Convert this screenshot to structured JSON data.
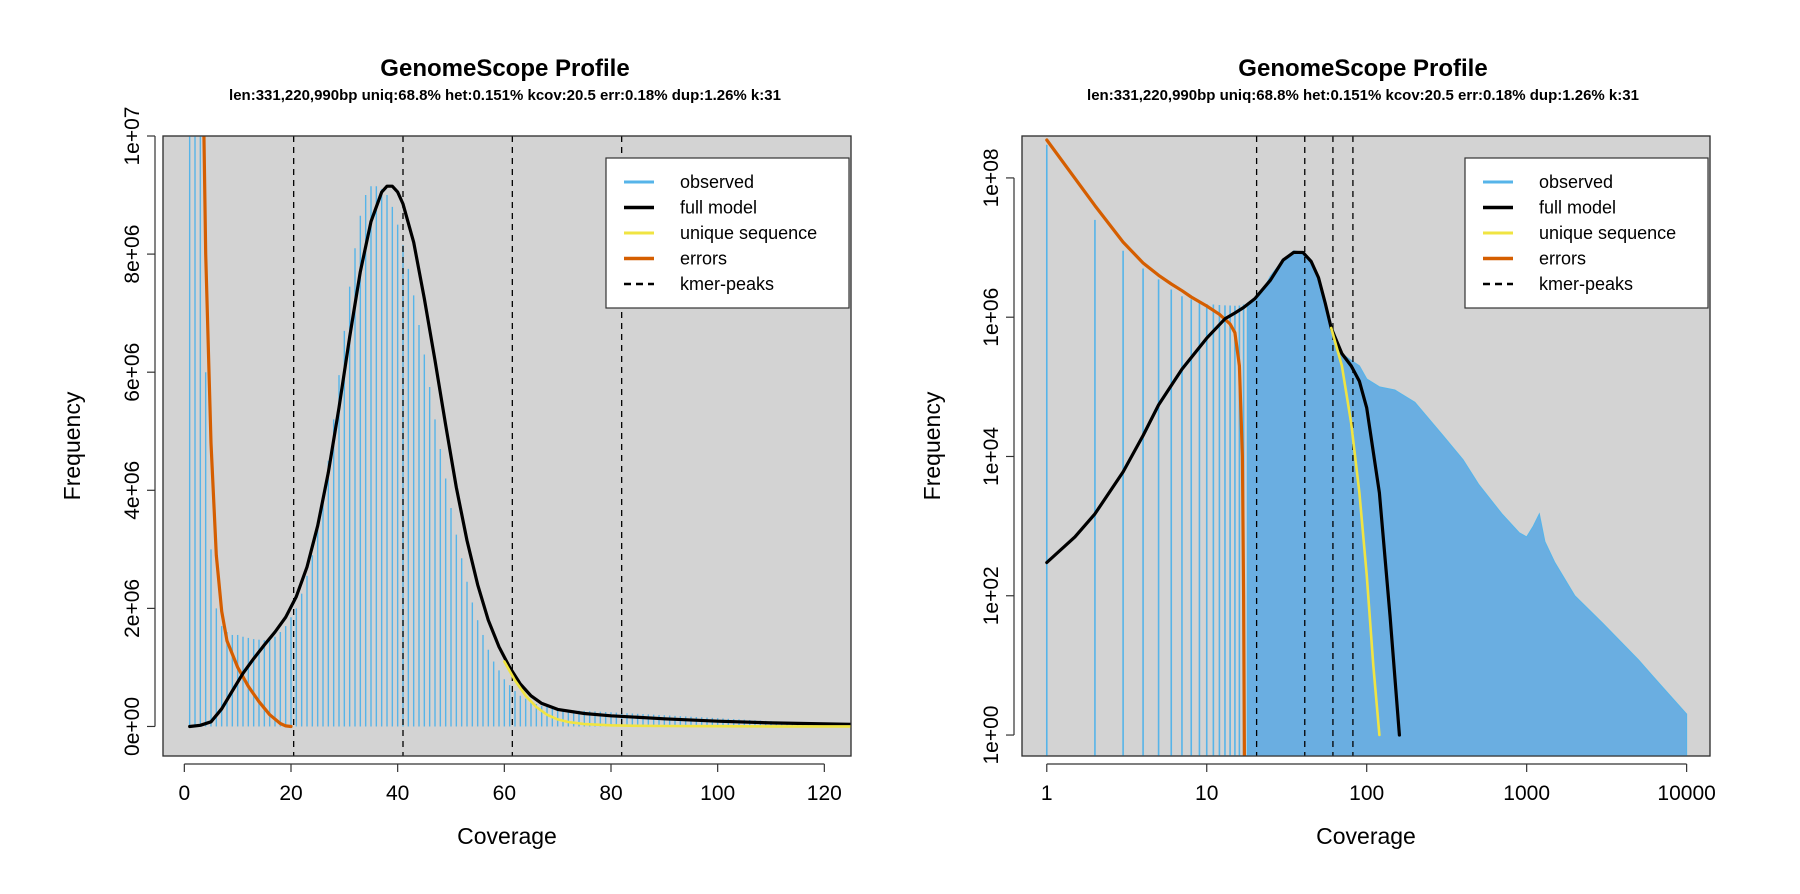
{
  "colors": {
    "panel_bg": "#d3d3d3",
    "observed": "#56b4e9",
    "observed_fill": "#6aaee1",
    "full_model": "#000000",
    "unique_sequence": "#f0e442",
    "errors": "#d55e00",
    "kmer_peaks": "#000000"
  },
  "chart_data": [
    {
      "type": "line",
      "title": "GenomeScope Profile",
      "subtitle": "len:331,220,990bp uniq:68.8%  het:0.151% kcov:20.5 err:0.18%  dup:1.26%  k:31",
      "xlabel": "Coverage",
      "ylabel": "Frequency",
      "xlim": [
        -4,
        125
      ],
      "ylim": [
        -500000,
        10000000
      ],
      "x_scale": "linear",
      "y_scale": "linear",
      "x_ticks": [
        0,
        20,
        40,
        60,
        80,
        100,
        120
      ],
      "x_tick_labels": [
        "0",
        "20",
        "40",
        "60",
        "80",
        "100",
        "120"
      ],
      "y_ticks": [
        0,
        2000000,
        4000000,
        6000000,
        8000000,
        10000000
      ],
      "y_tick_labels": [
        "0e+00",
        "2e+06",
        "4e+06",
        "6e+06",
        "8e+06",
        "1e+07"
      ],
      "grid": false,
      "legend_position": "top-right",
      "legend": [
        "observed",
        "full model",
        "unique sequence",
        "errors",
        "kmer-peaks"
      ],
      "kmer_peaks": [
        20.5,
        41,
        61.5,
        82
      ],
      "series": [
        {
          "name": "observed",
          "style": "histogram",
          "x": [
            1,
            2,
            3,
            4,
            5,
            6,
            7,
            8,
            9,
            10,
            11,
            12,
            13,
            14,
            15,
            16,
            17,
            18,
            19,
            20,
            21,
            22,
            23,
            24,
            25,
            26,
            27,
            28,
            29,
            30,
            31,
            32,
            33,
            34,
            35,
            36,
            37,
            38,
            39,
            40,
            41,
            42,
            43,
            44,
            45,
            46,
            47,
            48,
            49,
            50,
            51,
            52,
            53,
            54,
            55,
            56,
            57,
            58,
            59,
            60,
            61,
            62,
            63,
            64,
            65,
            66,
            67,
            68,
            69,
            70,
            71,
            72,
            73,
            74,
            75,
            76,
            77,
            78,
            79,
            80,
            81,
            82,
            83,
            84,
            85,
            86,
            87,
            88,
            89,
            90,
            91,
            92,
            93,
            94,
            95,
            96,
            97,
            98,
            99,
            100,
            101,
            102,
            103,
            104,
            105,
            106,
            107,
            108,
            109,
            110,
            111,
            112,
            113,
            114,
            115,
            116,
            117,
            118,
            119,
            120,
            121,
            122,
            123,
            124,
            125
          ],
          "values": [
            10500000,
            10500000,
            10500000,
            6000000,
            3000000,
            2000000,
            1700000,
            1600000,
            1550000,
            1550000,
            1520000,
            1500000,
            1480000,
            1470000,
            1460000,
            1470000,
            1520000,
            1600000,
            1700000,
            1850000,
            2000000,
            2250000,
            2550000,
            2900000,
            3350000,
            3900000,
            4500000,
            5200000,
            5950000,
            6700000,
            7450000,
            8100000,
            8650000,
            9000000,
            9150000,
            9150000,
            9100000,
            9000000,
            8800000,
            8500000,
            8150000,
            7750000,
            7300000,
            6800000,
            6300000,
            5750000,
            5200000,
            4700000,
            4200000,
            3700000,
            3250000,
            2850000,
            2450000,
            2100000,
            1800000,
            1550000,
            1300000,
            1100000,
            950000,
            800000,
            700000,
            600000,
            520000,
            470000,
            420000,
            380000,
            350000,
            330000,
            310000,
            300000,
            290000,
            280000,
            275000,
            270000,
            265000,
            260000,
            255000,
            250000,
            245000,
            240000,
            235000,
            230000,
            225000,
            220000,
            215000,
            210000,
            205000,
            200000,
            195000,
            190000,
            185000,
            180000,
            175000,
            170000,
            165000,
            160000,
            155000,
            150000,
            145000,
            140000,
            135000,
            130000,
            125000,
            120000,
            115000,
            110000,
            105000,
            100000,
            95000,
            90000,
            85000,
            80000,
            76000,
            72000,
            68000,
            64000,
            60000,
            57000,
            54000,
            51000,
            48000,
            45000,
            42000,
            40000,
            38000
          ]
        },
        {
          "name": "full model",
          "x": [
            1,
            3,
            5,
            7,
            9,
            11,
            13,
            15,
            17,
            19,
            21,
            23,
            25,
            27,
            29,
            31,
            33,
            35,
            37,
            38,
            39,
            40,
            41,
            43,
            45,
            47,
            49,
            51,
            53,
            55,
            57,
            59,
            61,
            63,
            65,
            67,
            70,
            75,
            80,
            90,
            100,
            110,
            125
          ],
          "values": [
            0,
            20000,
            80000,
            300000,
            600000,
            900000,
            1150000,
            1380000,
            1600000,
            1850000,
            2200000,
            2700000,
            3400000,
            4300000,
            5400000,
            6600000,
            7700000,
            8550000,
            9050000,
            9150000,
            9150000,
            9050000,
            8850000,
            8200000,
            7250000,
            6200000,
            5100000,
            4050000,
            3150000,
            2400000,
            1800000,
            1350000,
            1000000,
            720000,
            520000,
            390000,
            290000,
            220000,
            180000,
            130000,
            90000,
            60000,
            35000
          ]
        },
        {
          "name": "unique sequence",
          "x": [
            60,
            62,
            64,
            66,
            68,
            70,
            72,
            75,
            80,
            85,
            90,
            100,
            110,
            125
          ],
          "values": [
            1100000,
            780000,
            520000,
            330000,
            200000,
            120000,
            75000,
            40000,
            20000,
            12000,
            8000,
            4000,
            2000,
            1000
          ]
        },
        {
          "name": "errors",
          "x": [
            3.6,
            4,
            5,
            6,
            7,
            8,
            10,
            12,
            14,
            16,
            18,
            19,
            20
          ],
          "values": [
            10500000,
            8000000,
            4800000,
            2900000,
            1950000,
            1450000,
            1000000,
            680000,
            420000,
            200000,
            50000,
            10000,
            0
          ]
        }
      ]
    },
    {
      "type": "line",
      "title": "GenomeScope Profile",
      "subtitle": "len:331,220,990bp uniq:68.8%  het:0.151% kcov:20.5 err:0.18%  dup:1.26%  k:31",
      "xlabel": "Coverage",
      "ylabel": "Frequency",
      "x_scale": "log",
      "y_scale": "log",
      "xlim": [
        0.7,
        14000
      ],
      "ylim": [
        0.5,
        400000000
      ],
      "x_ticks": [
        1,
        10,
        100,
        1000,
        10000
      ],
      "x_tick_labels": [
        "1",
        "10",
        "100",
        "1000",
        "10000"
      ],
      "y_ticks": [
        1,
        100,
        10000,
        1000000,
        100000000
      ],
      "y_tick_labels": [
        "1e+00",
        "1e+02",
        "1e+04",
        "1e+06",
        "1e+08"
      ],
      "grid": false,
      "legend_position": "top-right",
      "legend": [
        "observed",
        "full model",
        "unique sequence",
        "errors",
        "kmer-peaks"
      ],
      "kmer_peaks": [
        20.5,
        41,
        61.5,
        82
      ],
      "series": [
        {
          "name": "observed",
          "style": "histogram",
          "x": [
            1,
            2,
            3,
            4,
            5,
            6,
            7,
            8,
            9,
            10,
            11,
            12,
            13,
            14,
            15,
            16,
            17,
            18,
            19,
            20,
            22,
            25,
            30,
            35,
            40,
            45,
            50,
            60,
            70,
            80,
            90,
            100,
            120,
            150,
            200,
            300,
            400,
            500,
            700,
            900,
            1000,
            1100,
            1200,
            1300,
            1500,
            2000,
            3000,
            5000,
            7000,
            10000
          ],
          "values": [
            300000000,
            25000000,
            9000000,
            5000000,
            3500000,
            2500000,
            2000000,
            1800000,
            1600000,
            1550000,
            1520000,
            1500000,
            1480000,
            1470000,
            1460000,
            1470000,
            1520000,
            1600000,
            1700000,
            1850000,
            2200000,
            3900000,
            6700000,
            9000000,
            8500000,
            6300000,
            3700000,
            800000,
            300000,
            240000,
            200000,
            130000,
            100000,
            90000,
            60000,
            20000,
            9000,
            4000,
            1500,
            800,
            700,
            1000,
            1500,
            600,
            300,
            100,
            40,
            12,
            5,
            2
          ]
        },
        {
          "name": "full model",
          "x": [
            1,
            1.5,
            2,
            3,
            4,
            5,
            7,
            10,
            13,
            15,
            17,
            20,
            25,
            30,
            35,
            40,
            45,
            50,
            55,
            60,
            70,
            80,
            90,
            100,
            120,
            140,
            160
          ],
          "values": [
            300,
            700,
            1500,
            6000,
            20000,
            55000,
            180000,
            500000,
            950000,
            1150000,
            1380000,
            1850000,
            3400000,
            6600000,
            8550000,
            8500000,
            6300000,
            3700000,
            1600000,
            700000,
            300000,
            200000,
            120000,
            50000,
            3000,
            50,
            1
          ]
        },
        {
          "name": "unique sequence",
          "x": [
            60,
            70,
            80,
            90,
            100,
            110,
            120
          ],
          "values": [
            700000,
            200000,
            30000,
            3000,
            200,
            10,
            1
          ]
        },
        {
          "name": "errors",
          "x": [
            1,
            2,
            3,
            4,
            5,
            6,
            7,
            8,
            10,
            12,
            14,
            15,
            16,
            16.7,
            17,
            17.2
          ],
          "values": [
            350000000,
            40000000,
            12000000,
            6000000,
            4000000,
            3000000,
            2400000,
            1950000,
            1450000,
            1100000,
            800000,
            600000,
            200000,
            10000,
            100,
            0.5
          ]
        }
      ]
    }
  ]
}
